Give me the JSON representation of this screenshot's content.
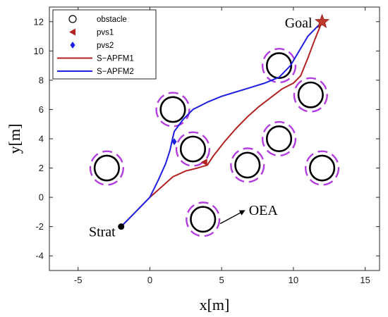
{
  "chart_data": {
    "type": "line",
    "title": "",
    "xlabel": "x[m]",
    "ylabel": "y[m]",
    "xlim": [
      -7,
      16
    ],
    "ylim": [
      -5,
      13
    ],
    "xticks": [
      -5,
      0,
      5,
      10,
      15
    ],
    "yticks": [
      -4,
      -2,
      0,
      2,
      4,
      6,
      8,
      10,
      12
    ],
    "grid": false,
    "legend_position": "top-left",
    "obstacles": [
      {
        "x": -3,
        "y": 2
      },
      {
        "x": 1.6,
        "y": 6
      },
      {
        "x": 3,
        "y": 3.3
      },
      {
        "x": 6.8,
        "y": 2.2
      },
      {
        "x": 9,
        "y": 9
      },
      {
        "x": 9,
        "y": 4
      },
      {
        "x": 11.2,
        "y": 7
      },
      {
        "x": 12,
        "y": 2
      },
      {
        "x": 3.7,
        "y": -1.5
      }
    ],
    "obstacle_radius": 0.85,
    "safety_radius": 1.15,
    "series": [
      {
        "name": "S−APFM1",
        "color": "#b22222",
        "x": [
          -2,
          -1,
          0,
          0.8,
          1.6,
          2.5,
          3.3,
          4.0,
          4.4,
          5.2,
          6.0,
          6.8,
          7.6,
          8.4,
          9.2,
          10.0,
          10.5,
          11.0,
          11.5,
          12
        ],
        "y": [
          -2,
          -1,
          0,
          0.7,
          1.4,
          1.8,
          2.0,
          2.2,
          2.8,
          3.8,
          4.7,
          5.5,
          6.2,
          6.8,
          7.4,
          7.8,
          8.3,
          9.5,
          10.8,
          12
        ]
      },
      {
        "name": "S−APFM2",
        "color": "#1f1fe0",
        "x": [
          -2,
          -1,
          0,
          0.6,
          1.1,
          1.4,
          1.6,
          1.7,
          2.3,
          3.0,
          4.0,
          5.0,
          6.0,
          7.0,
          8.0,
          9.0,
          9.8,
          10.4,
          11.0,
          11.6,
          12
        ],
        "y": [
          -2,
          -1,
          0,
          1.2,
          2.3,
          3.2,
          4.1,
          4.5,
          5.3,
          6.0,
          6.5,
          6.9,
          7.2,
          7.5,
          7.8,
          8.2,
          9.0,
          10.0,
          11.0,
          11.6,
          12
        ]
      }
    ],
    "pvs1_points": [
      {
        "x": 3.8,
        "y": 2.4
      }
    ],
    "pvs2_points": [
      {
        "x": 1.7,
        "y": 3.8
      }
    ],
    "start": {
      "x": -2,
      "y": -2,
      "label": "Strat"
    },
    "goal": {
      "x": 12,
      "y": 12,
      "label": "Goal"
    },
    "annotation": {
      "text": "OEA",
      "from": {
        "x": 4.9,
        "y": -1.8
      },
      "to": {
        "x": 6.6,
        "y": -0.9
      }
    },
    "legend": [
      "obstacle",
      "pvs1",
      "pvs2",
      "S−APFM1",
      "S−APFM2"
    ],
    "colors": {
      "obstacle": "#000000",
      "safety": "#b33ee0",
      "pvs1": "#b22222",
      "pvs2": "#1f1fe0",
      "start": "#000000",
      "goal": "#c0392b"
    }
  }
}
